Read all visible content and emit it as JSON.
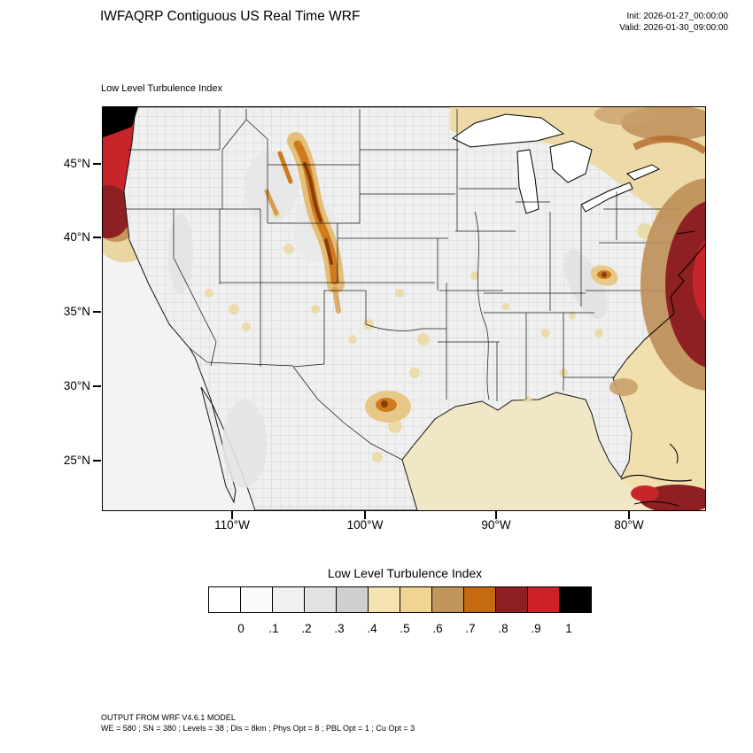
{
  "header": {
    "title": "IWFAQRP Contiguous US Real Time WRF",
    "init": "Init: 2026-01-27_00:00:00",
    "valid": "Valid: 2026-01-30_09:00:00"
  },
  "map": {
    "subtitle": "Low Level Turbulence Index",
    "lat_ticks": [
      "45°N",
      "40°N",
      "35°N",
      "30°N",
      "25°N"
    ],
    "lon_ticks": [
      "110°W",
      "100°W",
      "90°W",
      "80°W"
    ]
  },
  "colorbar": {
    "title": "Low Level Turbulence Index",
    "ticks": [
      "0",
      ".1",
      ".2",
      ".3",
      ".4",
      ".5",
      ".6",
      ".7",
      ".8",
      ".9",
      "1"
    ],
    "colors": [
      "#ffffff",
      "#fafafa",
      "#f0f0f0",
      "#e3e3e3",
      "#cfcfcf",
      "#f7e3b1",
      "#efd494",
      "#c2955c",
      "#c56a11",
      "#8e1f22",
      "#cc2128",
      "#000000"
    ]
  },
  "footer": {
    "line1": "OUTPUT FROM WRF V4.6.1 MODEL",
    "line2": "WE = 580 ; SN = 380 ; Levels = 38 ; Dis = 8km ; Phys Opt = 8 ; PBL Opt = 1 ; Cu Opt = 3"
  }
}
